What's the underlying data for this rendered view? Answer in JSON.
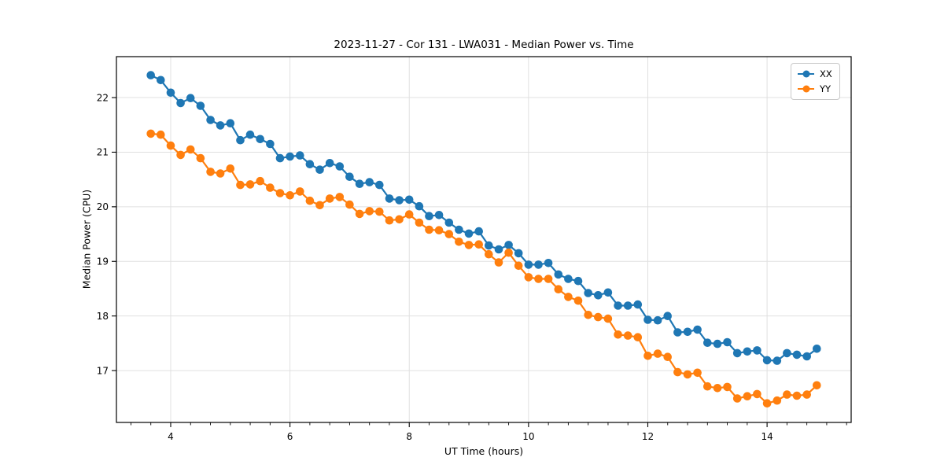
{
  "chart_data": {
    "type": "line",
    "title": "2023-11-27 - Cor 131 - LWA031 - Median Power vs. Time",
    "xlabel": "UT Time (hours)",
    "ylabel": "Median Power (CPU)",
    "xlim": [
      3.09,
      15.41
    ],
    "ylim": [
      16.05,
      22.75
    ],
    "x_ticks": [
      4,
      6,
      8,
      10,
      12,
      14
    ],
    "y_ticks": [
      17,
      18,
      19,
      20,
      21,
      22
    ],
    "x_minor_step": 0.3333333,
    "grid": true,
    "legend_position": "upper right",
    "x": [
      3.667,
      3.833,
      4.0,
      4.167,
      4.333,
      4.5,
      4.667,
      4.833,
      5.0,
      5.167,
      5.333,
      5.5,
      5.667,
      5.833,
      6.0,
      6.167,
      6.333,
      6.5,
      6.667,
      6.833,
      7.0,
      7.167,
      7.333,
      7.5,
      7.667,
      7.833,
      8.0,
      8.167,
      8.333,
      8.5,
      8.667,
      8.833,
      9.0,
      9.167,
      9.333,
      9.5,
      9.667,
      9.833,
      10.0,
      10.167,
      10.333,
      10.5,
      10.667,
      10.833,
      11.0,
      11.167,
      11.333,
      11.5,
      11.667,
      11.833,
      12.0,
      12.167,
      12.333,
      12.5,
      12.667,
      12.833,
      13.0,
      13.167,
      13.333,
      13.5,
      13.667,
      13.833,
      14.0,
      14.167,
      14.333,
      14.5,
      14.667,
      14.833
    ],
    "series": [
      {
        "name": "XX",
        "color": "#1f77b4",
        "values": [
          22.41,
          22.32,
          22.09,
          21.9,
          21.99,
          21.85,
          21.59,
          21.49,
          21.53,
          21.22,
          21.32,
          21.24,
          21.15,
          20.89,
          20.92,
          20.94,
          20.78,
          20.68,
          20.8,
          20.74,
          20.55,
          20.42,
          20.45,
          20.4,
          20.15,
          20.12,
          20.13,
          20.01,
          19.83,
          19.85,
          19.71,
          19.58,
          19.51,
          19.55,
          19.29,
          19.22,
          19.3,
          19.15,
          18.94,
          18.94,
          18.97,
          18.76,
          18.68,
          18.64,
          18.42,
          18.38,
          18.43,
          18.19,
          18.19,
          18.21,
          17.93,
          17.92,
          18.0,
          17.7,
          17.71,
          17.75,
          17.51,
          17.49,
          17.52,
          17.32,
          17.35,
          17.37,
          17.19,
          17.18,
          17.32,
          17.29,
          17.26,
          17.4
        ]
      },
      {
        "name": "YY",
        "color": "#ff7f0e",
        "values": [
          21.34,
          21.32,
          21.12,
          20.95,
          21.05,
          20.89,
          20.64,
          20.61,
          20.7,
          20.4,
          20.41,
          20.47,
          20.35,
          20.25,
          20.21,
          20.28,
          20.11,
          20.03,
          20.15,
          20.18,
          20.04,
          19.87,
          19.92,
          19.91,
          19.75,
          19.77,
          19.86,
          19.71,
          19.58,
          19.57,
          19.5,
          19.36,
          19.3,
          19.31,
          19.13,
          18.98,
          19.16,
          18.92,
          18.71,
          18.68,
          18.68,
          18.49,
          18.35,
          18.28,
          18.02,
          17.98,
          17.95,
          17.66,
          17.64,
          17.61,
          17.27,
          17.31,
          17.25,
          16.97,
          16.93,
          16.96,
          16.71,
          16.68,
          16.7,
          16.49,
          16.53,
          16.57,
          16.4,
          16.45,
          16.56,
          16.54,
          16.56,
          16.73
        ]
      }
    ]
  },
  "colors": {
    "background": "#ffffff",
    "grid": "#e0e0e0",
    "spine": "#000000",
    "tick": "#000000"
  }
}
